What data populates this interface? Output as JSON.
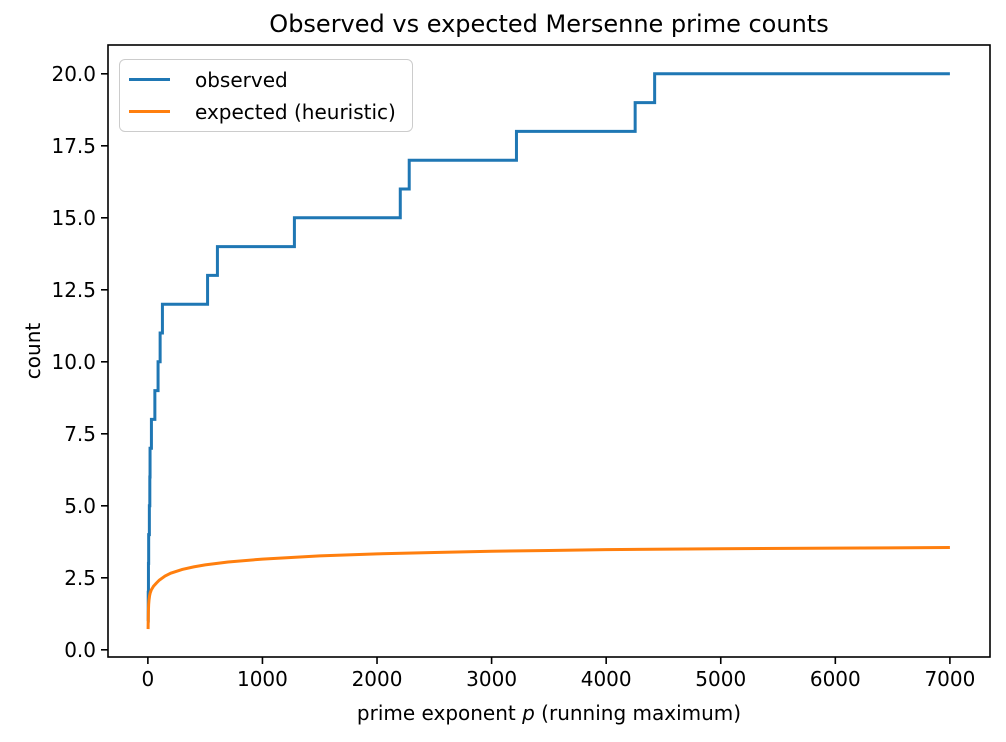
{
  "chart_data": {
    "type": "line",
    "title": "Observed vs expected Mersenne prime counts",
    "xlabel_parts": [
      "prime exponent ",
      "p",
      " (running maximum)"
    ],
    "xlabel_full": "prime exponent p (running maximum)",
    "ylabel": "count",
    "xlim": [
      -348,
      7350
    ],
    "ylim": [
      -0.25,
      21.0
    ],
    "grid": false,
    "background_color": "#ffffff",
    "axis_color": "#000000",
    "xticks": {
      "values": [
        0,
        1000,
        2000,
        3000,
        4000,
        5000,
        6000,
        7000
      ],
      "labels": [
        "0",
        "1000",
        "2000",
        "3000",
        "4000",
        "5000",
        "6000",
        "7000"
      ]
    },
    "yticks": {
      "values": [
        0,
        2.5,
        5,
        7.5,
        10,
        12.5,
        15,
        17.5,
        20
      ],
      "labels": [
        "0.0",
        "2.5",
        "5.0",
        "7.5",
        "10.0",
        "12.5",
        "15.0",
        "17.5",
        "20.0"
      ]
    },
    "legend": {
      "position": "upper left",
      "entries": [
        {
          "label": "observed",
          "color": "#1f77b4"
        },
        {
          "label": "expected (heuristic)",
          "color": "#ff7f0e"
        }
      ]
    },
    "series": [
      {
        "name": "observed",
        "style": "step-post",
        "color": "#1f77b4",
        "line_width": 3,
        "x": [
          2,
          3,
          5,
          7,
          13,
          17,
          19,
          31,
          61,
          89,
          107,
          127,
          521,
          607,
          1279,
          2203,
          2281,
          3217,
          4253,
          4423,
          7000
        ],
        "y": [
          1,
          2,
          3,
          4,
          5,
          6,
          7,
          8,
          9,
          10,
          11,
          12,
          13,
          14,
          15,
          16,
          17,
          18,
          19,
          20,
          20
        ]
      },
      {
        "name": "expected (heuristic)",
        "style": "line",
        "color": "#ff7f0e",
        "line_width": 3,
        "x": [
          2,
          3,
          4,
          5,
          7,
          10,
          15,
          20,
          30,
          50,
          75,
          100,
          150,
          200,
          300,
          400,
          500,
          700,
          1000,
          1500,
          2000,
          2500,
          3000,
          3500,
          4000,
          5000,
          6000,
          7000
        ],
        "y": [
          0.72,
          1.05,
          1.25,
          1.4,
          1.58,
          1.73,
          1.88,
          1.97,
          2.08,
          2.21,
          2.32,
          2.42,
          2.56,
          2.66,
          2.79,
          2.88,
          2.95,
          3.05,
          3.15,
          3.26,
          3.33,
          3.38,
          3.42,
          3.45,
          3.48,
          3.51,
          3.53,
          3.55
        ]
      }
    ]
  }
}
